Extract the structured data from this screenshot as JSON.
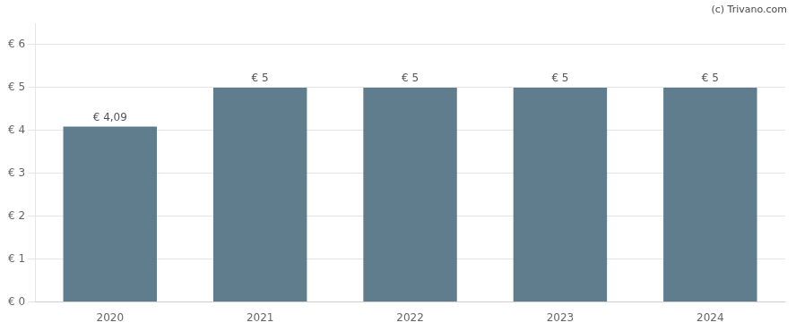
{
  "chart_data": {
    "type": "bar",
    "categories": [
      "2020",
      "2021",
      "2022",
      "2023",
      "2024"
    ],
    "values": [
      4.09,
      5.0,
      5.0,
      5.0,
      5.0
    ],
    "value_labels": [
      "€ 4,09",
      "€ 5",
      "€ 5",
      "€ 5",
      "€ 5"
    ],
    "data_labels": true,
    "color": "#5f7d8c",
    "ylim": [
      0,
      6.5
    ],
    "yticks": [
      {
        "value": 0,
        "label": "€ 0"
      },
      {
        "value": 1,
        "label": "€ 1"
      },
      {
        "value": 2,
        "label": "€ 2"
      },
      {
        "value": 3,
        "label": "€ 3"
      },
      {
        "value": 4,
        "label": "€ 4"
      },
      {
        "value": 5,
        "label": "€ 5"
      },
      {
        "value": 6,
        "label": "€ 6"
      }
    ],
    "grid": true,
    "annotations": [
      "(c) Trivano.com"
    ]
  }
}
